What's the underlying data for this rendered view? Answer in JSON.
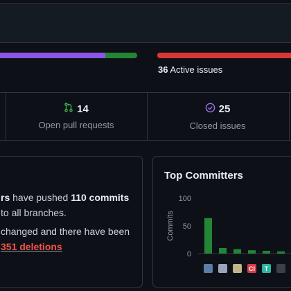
{
  "issues_bar": {
    "open_fraction": 1.0,
    "open_color": "#da3633"
  },
  "pr_bar": {
    "merged_fraction": 0.78,
    "merged_color": "#8957e5",
    "open_color": "#238636"
  },
  "active_issues": {
    "count": "36",
    "label": "Active issues"
  },
  "stats": [
    {
      "icon": "git-pull-request-icon",
      "value": "14",
      "label": "Open pull requests",
      "icon_color": "#3fb950"
    },
    {
      "icon": "check-circle-icon",
      "value": "25",
      "label": "Closed issues",
      "icon_color": "#a371f7"
    }
  ],
  "summary": {
    "line1_tail": "rs",
    "line1_mid": " have pushed ",
    "line1_commits": "110 commits",
    "line2": "to all branches.",
    "line3": "changed and there have been",
    "line4_num": "351",
    "line4_label": " deletions"
  },
  "committers": {
    "title": "Top Committers",
    "bar_color": "#238636",
    "avatars": [
      "avatar-1",
      "avatar-2",
      "avatar-3",
      "avatar-ci",
      "avatar-t",
      "avatar-6",
      "avatar-7"
    ]
  },
  "chart_data": {
    "type": "bar",
    "title": "Top Committers",
    "ylabel": "Commits",
    "xlabel": "",
    "yticks": [
      "0",
      "50",
      "100"
    ],
    "ylim": [
      0,
      100
    ],
    "values": [
      64,
      10,
      8,
      6,
      5,
      4,
      3
    ]
  }
}
